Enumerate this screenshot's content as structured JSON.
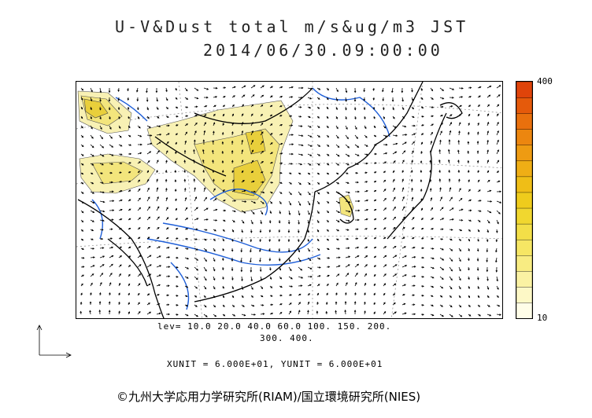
{
  "title": {
    "line1": "U-V&Dust total m/s&ug/m3 JST",
    "line2": "2014/06/30.09:00:00"
  },
  "colorbar": {
    "max_label": "400",
    "min_label": "10",
    "colors": [
      "#fffde8",
      "#fdf8c6",
      "#fbf2a3",
      "#f8ec82",
      "#f6e664",
      "#f3df48",
      "#f1d72f",
      "#efcc1c",
      "#efbe17",
      "#efae15",
      "#ee9b12",
      "#ec860f",
      "#e9700d",
      "#e55a0b",
      "#e0440a"
    ]
  },
  "map": {
    "wind_field": "u-v wind vectors",
    "dust_field": "dust total concentration",
    "land_color": "#ffffff",
    "dust_light": "#f8f1b4",
    "dust_mid": "#f3e57c",
    "dust_dark": "#e9cf3b",
    "river_color": "#1f5fd8",
    "coast_color": "#000000"
  },
  "levels": {
    "line1": "lev= 10.0 20.0 40.0 60.0 100. 150. 200.",
    "line2": "300. 400."
  },
  "units": "XUNIT = 6.000E+01, YUNIT = 6.000E+01",
  "copyright": "©九州大学応用力学研究所(RIAM)/国立環境研究所(NIES)"
}
